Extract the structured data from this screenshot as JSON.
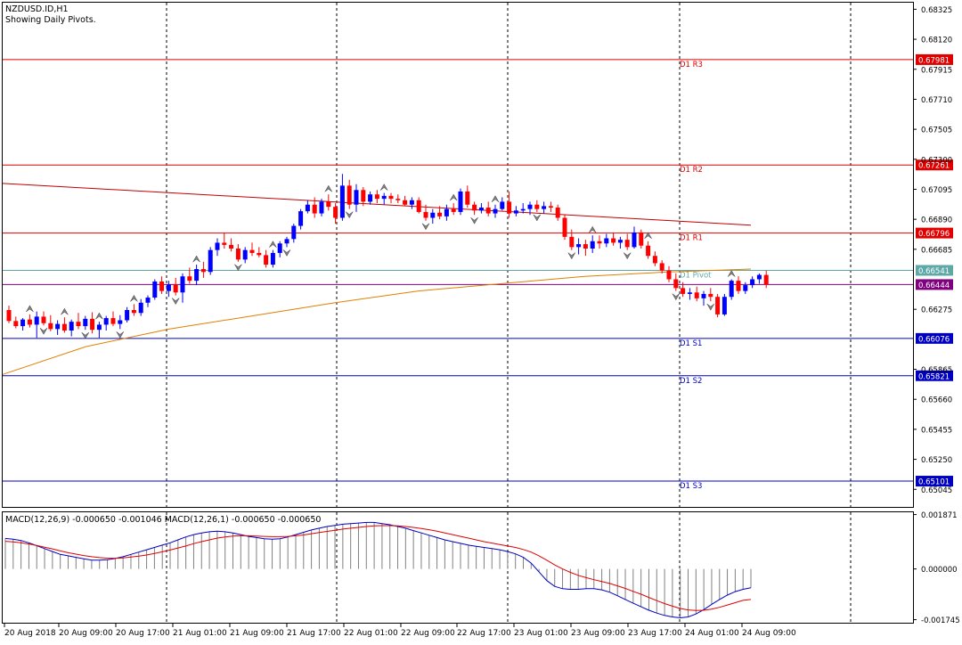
{
  "header": {
    "symbol_line": "NZDUSD.ID,H1",
    "subtitle": "Showing Daily Pivots."
  },
  "chart_data": [
    {
      "type": "candlestick",
      "symbol": "NZDUSD.ID",
      "timeframe": "H1",
      "price_axis_labels": [
        "0.68325",
        "0.68120",
        "0.67915",
        "0.67710",
        "0.67505",
        "0.67300",
        "0.67095",
        "0.66890",
        "0.66685",
        "0.66275",
        "0.65865",
        "0.65660",
        "0.65455",
        "0.65250",
        "0.65045"
      ],
      "ylim": [
        0.6501,
        0.6837
      ],
      "time_axis_labels": [
        "20 Aug 2018",
        "20 Aug 09:00",
        "20 Aug 17:00",
        "21 Aug 01:00",
        "21 Aug 09:00",
        "21 Aug 17:00",
        "22 Aug 01:00",
        "22 Aug 09:00",
        "22 Aug 17:00",
        "23 Aug 01:00",
        "23 Aug 09:00",
        "23 Aug 17:00",
        "24 Aug 01:00",
        "24 Aug 09:00"
      ],
      "pivot_levels": [
        {
          "label": "D1 R3",
          "value": 0.67981,
          "price_tag": "0.67981",
          "color": "#e00000"
        },
        {
          "label": "D1 R2",
          "value": 0.67261,
          "price_tag": "0.67261",
          "color": "#e00000"
        },
        {
          "label": "D1 R1",
          "value": 0.66796,
          "price_tag": "0.66796",
          "color": "#e00000"
        },
        {
          "label": "D1 Pivot",
          "value": 0.66541,
          "price_tag": "0.66541",
          "color": "#5fa8a8"
        },
        {
          "label": "D1 S1",
          "value": 0.66076,
          "price_tag": "0.66076",
          "color": "#0000c0"
        },
        {
          "label": "D1 S2",
          "value": 0.65821,
          "price_tag": "0.65821",
          "color": "#0000c0"
        },
        {
          "label": "D1 S3",
          "value": 0.65101,
          "price_tag": "0.65101",
          "color": "#0000c0"
        }
      ],
      "current_price": {
        "value": 0.66444,
        "price_tag": "0.66444",
        "color": "#800080"
      },
      "trendline": {
        "start": 0.67135,
        "end": 0.6685,
        "color": "#c00000"
      },
      "moving_average": {
        "color": "#e08000",
        "values": [
          0.6583,
          0.6602,
          0.6614,
          0.6623,
          0.6632,
          0.664,
          0.6645,
          0.665,
          0.6653,
          0.6655
        ]
      },
      "candles": [
        [
          0.6627,
          0.663,
          0.6618,
          0.66195
        ],
        [
          0.66195,
          0.66225,
          0.66145,
          0.6616
        ],
        [
          0.6616,
          0.66215,
          0.6613,
          0.66205
        ],
        [
          0.66205,
          0.6624,
          0.6615,
          0.6617
        ],
        [
          0.6617,
          0.6626,
          0.6608,
          0.66225
        ],
        [
          0.66225,
          0.6626,
          0.66165,
          0.6618
        ],
        [
          0.6618,
          0.66235,
          0.66125,
          0.6614
        ],
        [
          0.6614,
          0.662,
          0.661,
          0.66175
        ],
        [
          0.66175,
          0.6622,
          0.66115,
          0.6613
        ],
        [
          0.6613,
          0.66205,
          0.6609,
          0.6619
        ],
        [
          0.6619,
          0.6625,
          0.6614,
          0.6616
        ],
        [
          0.6616,
          0.6623,
          0.66135,
          0.6621
        ],
        [
          0.6621,
          0.66255,
          0.6611,
          0.66135
        ],
        [
          0.66135,
          0.6619,
          0.6608,
          0.6617
        ],
        [
          0.6617,
          0.6623,
          0.6613,
          0.66215
        ],
        [
          0.66215,
          0.6626,
          0.6616,
          0.66175
        ],
        [
          0.66175,
          0.66235,
          0.6614,
          0.662
        ],
        [
          0.662,
          0.6629,
          0.66185,
          0.6627
        ],
        [
          0.6627,
          0.6631,
          0.6623,
          0.6625
        ],
        [
          0.6625,
          0.66345,
          0.6623,
          0.6632
        ],
        [
          0.6632,
          0.6637,
          0.6629,
          0.66355
        ],
        [
          0.66355,
          0.6648,
          0.6634,
          0.66465
        ],
        [
          0.66465,
          0.665,
          0.6638,
          0.664
        ],
        [
          0.664,
          0.6647,
          0.6636,
          0.66445
        ],
        [
          0.66445,
          0.6649,
          0.6637,
          0.6639
        ],
        [
          0.6639,
          0.6652,
          0.6632,
          0.665
        ],
        [
          0.665,
          0.6656,
          0.6645,
          0.6647
        ],
        [
          0.6647,
          0.6658,
          0.6644,
          0.6655
        ],
        [
          0.6655,
          0.666,
          0.6649,
          0.6653
        ],
        [
          0.6653,
          0.667,
          0.6651,
          0.6668
        ],
        [
          0.6668,
          0.6676,
          0.6664,
          0.6673
        ],
        [
          0.6673,
          0.668,
          0.6669,
          0.66715
        ],
        [
          0.66715,
          0.6676,
          0.6667,
          0.6669
        ],
        [
          0.6669,
          0.6672,
          0.666,
          0.66615
        ],
        [
          0.66615,
          0.667,
          0.6659,
          0.6668
        ],
        [
          0.6668,
          0.6673,
          0.6664,
          0.6666
        ],
        [
          0.6666,
          0.667,
          0.6663,
          0.66645
        ],
        [
          0.66645,
          0.6668,
          0.6656,
          0.6658
        ],
        [
          0.6658,
          0.6668,
          0.6656,
          0.6666
        ],
        [
          0.6666,
          0.6674,
          0.6663,
          0.66725
        ],
        [
          0.66725,
          0.6677,
          0.667,
          0.66755
        ],
        [
          0.66755,
          0.6686,
          0.6673,
          0.66845
        ],
        [
          0.66845,
          0.6696,
          0.6682,
          0.66945
        ],
        [
          0.66945,
          0.6702,
          0.6693,
          0.6699
        ],
        [
          0.6699,
          0.6704,
          0.669,
          0.6693
        ],
        [
          0.6693,
          0.6703,
          0.6691,
          0.6701
        ],
        [
          0.6701,
          0.6706,
          0.6695,
          0.66975
        ],
        [
          0.66975,
          0.67,
          0.6686,
          0.669
        ],
        [
          0.669,
          0.672,
          0.6688,
          0.6712
        ],
        [
          0.6712,
          0.6716,
          0.6696,
          0.6699
        ],
        [
          0.6699,
          0.6713,
          0.6694,
          0.6709
        ],
        [
          0.6709,
          0.6711,
          0.6698,
          0.6701
        ],
        [
          0.6701,
          0.6708,
          0.6699,
          0.6706
        ],
        [
          0.6706,
          0.6709,
          0.67,
          0.6703
        ],
        [
          0.6703,
          0.6707,
          0.6699,
          0.6705
        ],
        [
          0.6705,
          0.6707,
          0.67,
          0.6703
        ],
        [
          0.6703,
          0.6706,
          0.67,
          0.6702
        ],
        [
          0.6702,
          0.6705,
          0.6698,
          0.6699
        ],
        [
          0.6699,
          0.6704,
          0.6696,
          0.6702
        ],
        [
          0.6702,
          0.6704,
          0.6693,
          0.6694
        ],
        [
          0.6694,
          0.6699,
          0.6688,
          0.669
        ],
        [
          0.669,
          0.6696,
          0.6686,
          0.66935
        ],
        [
          0.66935,
          0.6698,
          0.6689,
          0.6691
        ],
        [
          0.6691,
          0.6699,
          0.6688,
          0.6696
        ],
        [
          0.6696,
          0.67,
          0.6692,
          0.6694
        ],
        [
          0.6694,
          0.671,
          0.6692,
          0.6708
        ],
        [
          0.6708,
          0.6712,
          0.6697,
          0.6699
        ],
        [
          0.6699,
          0.6701,
          0.6692,
          0.6695
        ],
        [
          0.6695,
          0.67,
          0.6693,
          0.6697
        ],
        [
          0.6697,
          0.6701,
          0.6691,
          0.6693
        ],
        [
          0.6693,
          0.6699,
          0.669,
          0.6696
        ],
        [
          0.6696,
          0.6704,
          0.6695,
          0.6701
        ],
        [
          0.6701,
          0.6708,
          0.669,
          0.6693
        ],
        [
          0.6693,
          0.6698,
          0.6691,
          0.6695
        ],
        [
          0.6695,
          0.67,
          0.6693,
          0.6696
        ],
        [
          0.6696,
          0.6701,
          0.6692,
          0.6699
        ],
        [
          0.6699,
          0.6702,
          0.6694,
          0.6696
        ],
        [
          0.6696,
          0.6701,
          0.6693,
          0.6698
        ],
        [
          0.6698,
          0.6701,
          0.6694,
          0.6697
        ],
        [
          0.6697,
          0.6699,
          0.6688,
          0.669
        ],
        [
          0.669,
          0.6692,
          0.6675,
          0.6677
        ],
        [
          0.6677,
          0.6682,
          0.6668,
          0.667
        ],
        [
          0.667,
          0.6676,
          0.6665,
          0.6672
        ],
        [
          0.6672,
          0.6675,
          0.6664,
          0.6669
        ],
        [
          0.6669,
          0.6678,
          0.6666,
          0.6674
        ],
        [
          0.6674,
          0.6678,
          0.6669,
          0.66725
        ],
        [
          0.66725,
          0.6679,
          0.667,
          0.6676
        ],
        [
          0.6676,
          0.668,
          0.6671,
          0.6673
        ],
        [
          0.6673,
          0.6677,
          0.6669,
          0.6675
        ],
        [
          0.6675,
          0.6679,
          0.6668,
          0.667
        ],
        [
          0.667,
          0.6684,
          0.6669,
          0.668
        ],
        [
          0.668,
          0.6682,
          0.6669,
          0.6671
        ],
        [
          0.6671,
          0.6674,
          0.6662,
          0.6664
        ],
        [
          0.6664,
          0.6667,
          0.6657,
          0.6659
        ],
        [
          0.6659,
          0.6661,
          0.6652,
          0.6654
        ],
        [
          0.6654,
          0.6657,
          0.6646,
          0.6648
        ],
        [
          0.6648,
          0.6652,
          0.664,
          0.6642
        ],
        [
          0.6642,
          0.6646,
          0.6636,
          0.6638
        ],
        [
          0.6638,
          0.6642,
          0.6634,
          0.6639
        ],
        [
          0.6639,
          0.6643,
          0.6633,
          0.6635
        ],
        [
          0.6635,
          0.664,
          0.663,
          0.6638
        ],
        [
          0.6638,
          0.6642,
          0.6633,
          0.6636
        ],
        [
          0.6636,
          0.6638,
          0.6622,
          0.6624
        ],
        [
          0.6624,
          0.6638,
          0.6623,
          0.6636
        ],
        [
          0.6636,
          0.6648,
          0.6634,
          0.6647
        ],
        [
          0.6647,
          0.665,
          0.6638,
          0.664
        ],
        [
          0.664,
          0.6646,
          0.6638,
          0.6644
        ],
        [
          0.6644,
          0.665,
          0.6642,
          0.6648
        ],
        [
          0.6648,
          0.6652,
          0.6645,
          0.6651
        ],
        [
          0.6651,
          0.6654,
          0.6642,
          0.66444
        ]
      ],
      "up_color": "#0000ff",
      "down_color": "#ff0000",
      "fractal_markers": {
        "up_at": [
          3,
          8,
          13,
          18,
          27,
          38,
          46,
          54,
          64,
          70,
          84,
          92,
          104
        ],
        "down_at": [
          5,
          11,
          16,
          24,
          33,
          40,
          49,
          60,
          67,
          76,
          81,
          89,
          96,
          101
        ]
      },
      "grid_vertical_dotted": true
    },
    {
      "type": "line",
      "indicator": "MACD",
      "title": "MACD(12,26,9) -0.000650 -0.001046 MACD(12,26,1) -0.000650 -0.000650",
      "axis_labels": [
        "0.001871",
        "0.000000",
        "-0.001745"
      ],
      "ylim": [
        -0.00185,
        0.00195
      ],
      "histogram": [
        0.00105,
        0.00102,
        0.00098,
        0.0009,
        0.0008,
        0.0007,
        0.0006,
        0.0005,
        0.00045,
        0.0004,
        0.00035,
        0.0003,
        0.0003,
        0.00032,
        0.00036,
        0.00042,
        0.0005,
        0.00058,
        0.00066,
        0.00074,
        0.00082,
        0.0009,
        0.001,
        0.0011,
        0.00118,
        0.00124,
        0.00128,
        0.0013,
        0.00128,
        0.00124,
        0.00118,
        0.00112,
        0.00108,
        0.00104,
        0.00102,
        0.00104,
        0.0011,
        0.00118,
        0.00126,
        0.00134,
        0.0014,
        0.00146,
        0.0015,
        0.00154,
        0.00156,
        0.00158,
        0.0016,
        0.0016,
        0.00156,
        0.00152,
        0.00146,
        0.0014,
        0.00132,
        0.00124,
        0.00116,
        0.00108,
        0.001,
        0.00094,
        0.00088,
        0.00082,
        0.00078,
        0.00074,
        0.0007,
        0.00066,
        0.0006,
        0.00052,
        0.0004,
        0.0002,
        -0.0001,
        -0.0004,
        -0.0006,
        -0.00068,
        -0.0007,
        -0.0007,
        -0.00068,
        -0.00068,
        -0.00072,
        -0.0008,
        -0.00092,
        -0.00105,
        -0.00118,
        -0.0013,
        -0.00142,
        -0.00152,
        -0.0016,
        -0.00165,
        -0.00168,
        -0.00165,
        -0.00155,
        -0.0014,
        -0.00122,
        -0.00105,
        -0.0009,
        -0.00078,
        -0.0007,
        -0.00065
      ],
      "signal": [
        0.00095,
        0.00093,
        0.0009,
        0.00086,
        0.00081,
        0.00075,
        0.00069,
        0.00062,
        0.00056,
        0.00051,
        0.00046,
        0.00042,
        0.00039,
        0.00037,
        0.00037,
        0.00038,
        0.00041,
        0.00044,
        0.00048,
        0.00053,
        0.00059,
        0.00065,
        0.00072,
        0.00079,
        0.00087,
        0.00094,
        0.001,
        0.00106,
        0.0011,
        0.00113,
        0.00114,
        0.00114,
        0.00113,
        0.00112,
        0.00111,
        0.00111,
        0.00112,
        0.00114,
        0.00117,
        0.00121,
        0.00125,
        0.00129,
        0.00133,
        0.00137,
        0.0014,
        0.00143,
        0.00146,
        0.00148,
        0.00149,
        0.00149,
        0.00148,
        0.00146,
        0.00143,
        0.00139,
        0.00135,
        0.0013,
        0.00124,
        0.00118,
        0.00112,
        0.00106,
        0.001,
        0.00094,
        0.00089,
        0.00084,
        0.00079,
        0.00074,
        0.00067,
        0.00058,
        0.00045,
        0.0003,
        0.00014,
        0.0,
        -0.00012,
        -0.00022,
        -0.0003,
        -0.00037,
        -0.00043,
        -0.0005,
        -0.00058,
        -0.00067,
        -0.00077,
        -0.00087,
        -0.00098,
        -0.00109,
        -0.00119,
        -0.00128,
        -0.00136,
        -0.00141,
        -0.00143,
        -0.00142,
        -0.00138,
        -0.00132,
        -0.00124,
        -0.00116,
        -0.00108,
        -0.00105
      ],
      "histogram_color": "#808080",
      "macd_color": "#0000c0",
      "signal_color": "#e00000"
    }
  ]
}
